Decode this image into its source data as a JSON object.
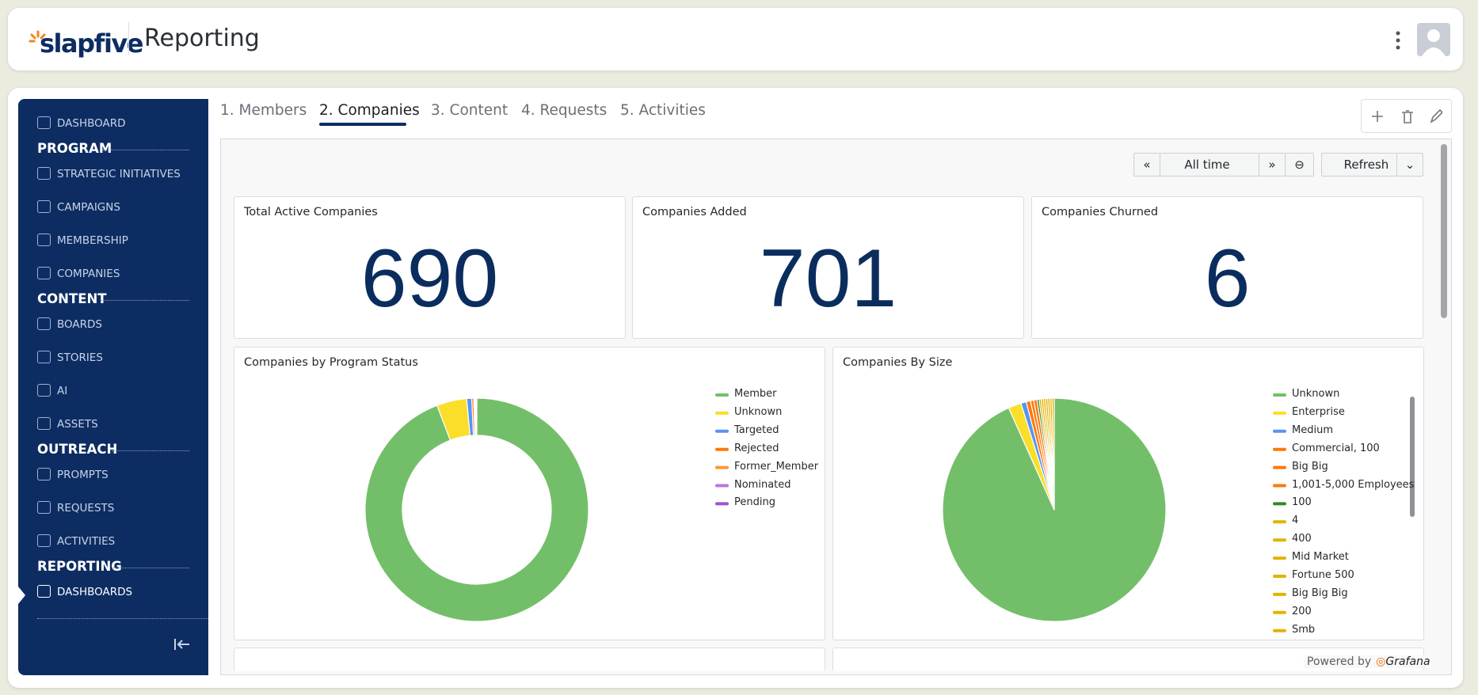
{
  "header": {
    "brand": "slapfive",
    "title": "Reporting"
  },
  "sidebar": {
    "top": "DASHBOARD",
    "sections": [
      {
        "heading": "PROGRAM",
        "items": [
          "STRATEGIC INITIATIVES",
          "CAMPAIGNS",
          "MEMBERSHIP",
          "COMPANIES"
        ]
      },
      {
        "heading": "CONTENT",
        "items": [
          "BOARDS",
          "STORIES",
          "AI",
          "ASSETS"
        ]
      },
      {
        "heading": "OUTREACH",
        "items": [
          "PROMPTS",
          "REQUESTS",
          "ACTIVITIES"
        ]
      },
      {
        "heading": "REPORTING",
        "items": [
          "DASHBOARDS"
        ]
      }
    ]
  },
  "tabs": [
    "1. Members",
    "2. Companies",
    "3. Content",
    "4. Requests",
    "5. Activities"
  ],
  "active_tab": 1,
  "toolbar": {
    "time_range": "All time",
    "refresh": "Refresh"
  },
  "stats": [
    {
      "title": "Total Active Companies",
      "value": "690"
    },
    {
      "title": "Companies Added",
      "value": "701"
    },
    {
      "title": "Companies Churned",
      "value": "6"
    }
  ],
  "charts": [
    {
      "type": "donut",
      "title": "Companies by Program Status",
      "categories": [
        "Member",
        "Unknown",
        "Targeted",
        "Rejected",
        "Former_Member",
        "Nominated",
        "Pending"
      ],
      "values": [
        650,
        30,
        5,
        2,
        1,
        1,
        1
      ],
      "colors": [
        "#73bf69",
        "#fade2a",
        "#5794f2",
        "#ff780a",
        "#ff9830",
        "#b877d9",
        "#a352cc"
      ]
    },
    {
      "type": "pie",
      "title": "Companies By Size",
      "categories": [
        "Unknown",
        "Enterprise",
        "Medium",
        "Commercial, 100",
        "Big Big",
        "1,001-5,000 Employees",
        "100",
        "4",
        "400",
        "Mid Market",
        "Fortune 500",
        "Big Big Big",
        "200",
        "Smb"
      ],
      "values": [
        600,
        12,
        5,
        4,
        3,
        3,
        2,
        2,
        2,
        2,
        2,
        2,
        2,
        2
      ],
      "colors": [
        "#73bf69",
        "#fade2a",
        "#5794f2",
        "#ff780a",
        "#ff780a",
        "#ff780a",
        "#37872d",
        "#e0b400",
        "#e0b400",
        "#e0b400",
        "#e0b400",
        "#e0b400",
        "#e0b400",
        "#e0b400"
      ]
    }
  ],
  "footer": {
    "powered": "Powered by",
    "brand": "Grafana"
  }
}
